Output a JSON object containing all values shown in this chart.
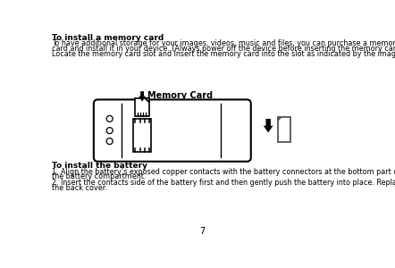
{
  "bg_color": "#ffffff",
  "title1": "To install a memory card",
  "body1_line1": "To have additional storage for your images, videos, music and files, you can purchase a memory",
  "body1_line2": "card and install it in your device. (Always power off the device before inserting the memory card)",
  "body1_line3": "Locate the memory card slot and Insert the memory card into the slot as indicated by the image.",
  "title2": "To install the battery",
  "body2_line1": "1. Align the battery’s exposed copper contacts with the battery connectors at the bottom part of",
  "body2_line2": "the battery compartment.",
  "body2_line3": "2. Insert the contacts side of the battery first and then gently push the battery into place. Replace",
  "body2_line4": "the back cover.",
  "page_number": "7",
  "memory_card_label": "Memory Card",
  "font_size_title": 6.5,
  "font_size_body": 5.8
}
